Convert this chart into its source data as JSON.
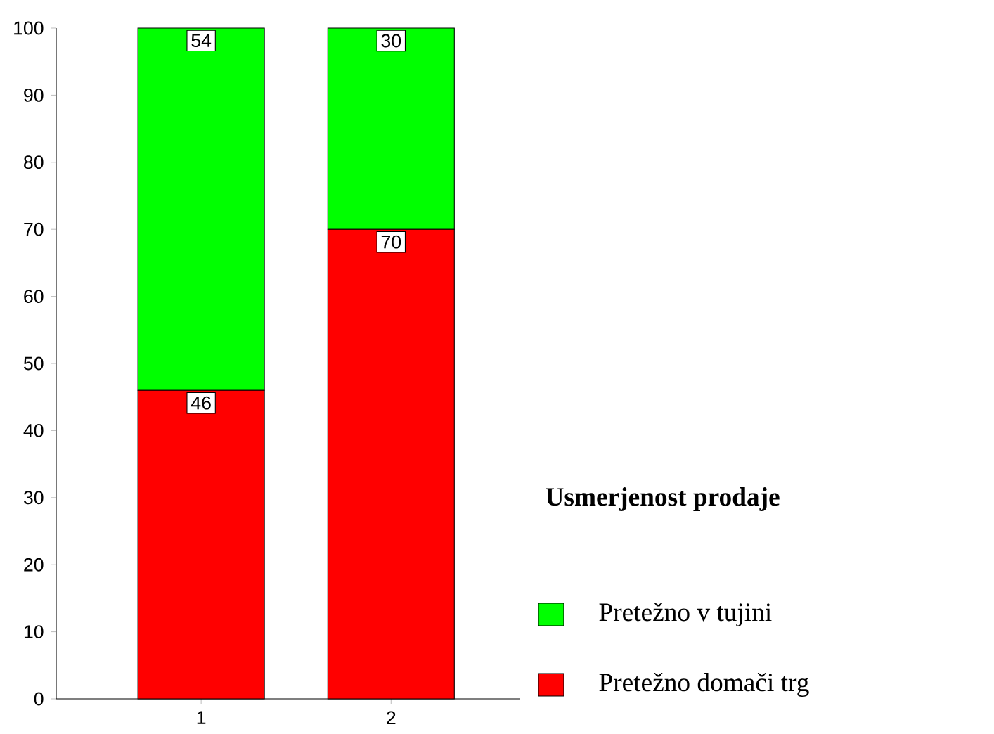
{
  "chart_data": {
    "type": "bar",
    "stacked": true,
    "categories": [
      "1",
      "2"
    ],
    "series": [
      {
        "name": "Pretežno domači trg",
        "color": "#ff0000",
        "values": [
          46,
          70
        ]
      },
      {
        "name": "Pretežno v tujini",
        "color": "#00ff00",
        "values": [
          54,
          30
        ]
      }
    ],
    "ylim": [
      0,
      100
    ],
    "yticks": [
      0,
      10,
      20,
      30,
      40,
      50,
      60,
      70,
      80,
      90,
      100
    ],
    "data_labels": true,
    "legend": "right",
    "legend_title": "Usmerjenost prodaje"
  }
}
